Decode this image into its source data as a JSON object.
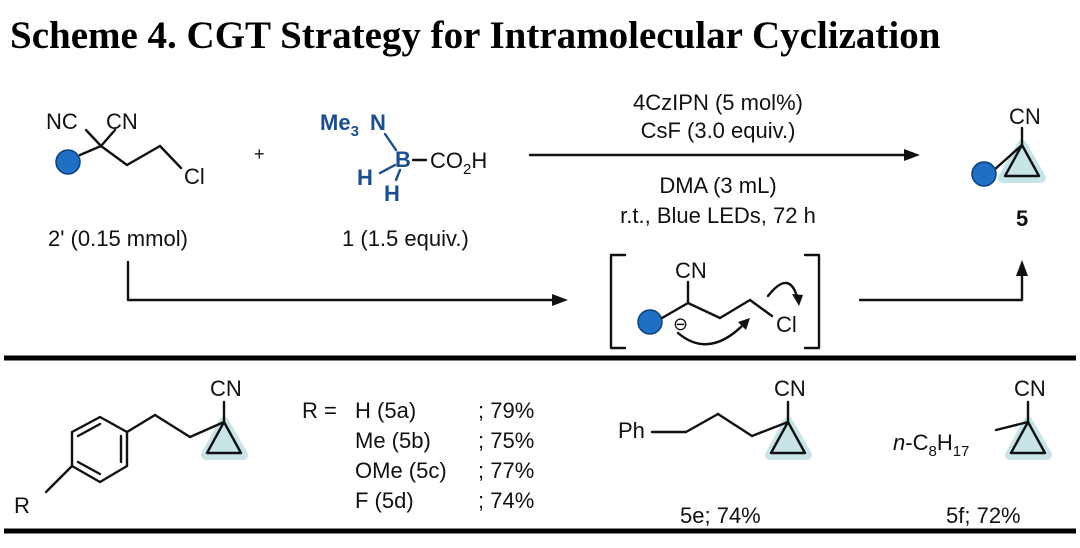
{
  "title": "Scheme 4. CGT Strategy for Intramolecular Cyclization",
  "reactant_2": {
    "label_bold": "2'",
    "label_rest": " (0.15 mmol)",
    "atoms": {
      "nc": "NC",
      "cn": "CN",
      "cl": "Cl"
    }
  },
  "plus": "+",
  "reagent_1": {
    "label_bold": "1",
    "label_rest": " (1.5 equiv.)",
    "atoms": {
      "me3": "Me",
      "me3_sub": "3",
      "n": "N",
      "b": "B",
      "h1": "H",
      "h2": "H",
      "co2h_a": "CO",
      "co2h_sub": "2",
      "co2h_b": "H"
    }
  },
  "conditions": {
    "line1": "4CzIPN (5 mol%)",
    "line2": "CsF (3.0 equiv.)",
    "line3": "DMA (3 mL)",
    "line4_a": "r.t., ",
    "line4_blue": "Blue LEDs",
    "line4_b": ", 72 h"
  },
  "product": {
    "cn": "CN",
    "label": "5"
  },
  "intermediate": {
    "cn": "CN",
    "minus": "⊖",
    "cl": "Cl"
  },
  "scope": {
    "r_label": "R",
    "cn_a": "CN",
    "r_equals": "R = ",
    "entries": [
      {
        "sub": "H (",
        "bold": "5a",
        "close": ")",
        "yield": "; 79%"
      },
      {
        "sub": "Me (",
        "bold": "5b",
        "close": ")",
        "yield": "; 75%"
      },
      {
        "sub": "OMe (",
        "bold": "5c",
        "close": ")",
        "yield": "; 77%"
      },
      {
        "sub": "F (",
        "bold": "5d",
        "close": ")",
        "yield": "; 74%"
      }
    ],
    "e": {
      "ph": "Ph",
      "cn": "CN",
      "label_bold": "5e",
      "label_rest": "; 74%"
    },
    "f": {
      "prefix": "n",
      "mid": "-C",
      "sub1": "8",
      "h": "H",
      "sub2": "17",
      "cn": "CN",
      "label_bold": "5f",
      "label_rest": "; 72%"
    }
  },
  "colors": {
    "accent_blue": "#1a4f8f",
    "dot_blue": "#1f6fc4",
    "halo": "#c7e4e7"
  }
}
